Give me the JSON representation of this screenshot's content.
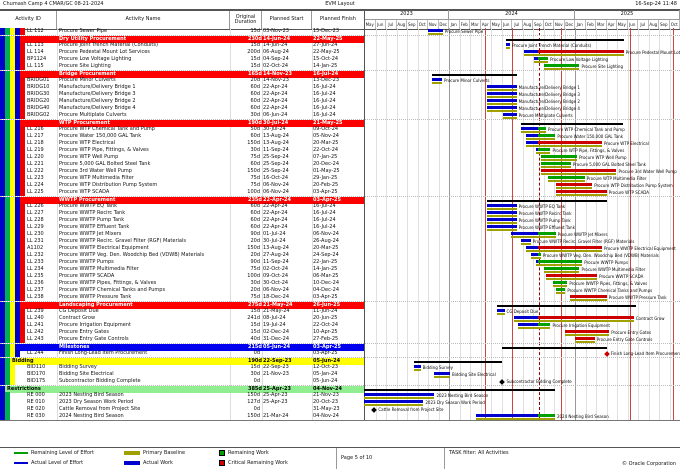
{
  "page": {
    "project": "Chumash Camp 4 CMAR/GC 08-21-2024",
    "layout": "EVM Layout",
    "datetime": "16-Sep-24 11:48",
    "page_label": "Page 5 of 10",
    "task_filter": "TASK filter: All Activities",
    "copyright": "© Oracle Corporation"
  },
  "columns": {
    "id": "Activity ID",
    "name": "Activity Name",
    "duration": "Original Duration",
    "start": "Planned Start",
    "finish": "Planned Finish"
  },
  "timeline": {
    "start_date": "01-May-23",
    "end_date": "01-Nov-25",
    "data_date": "16-Sep-24",
    "years": [
      {
        "label": "2023",
        "months": 8
      },
      {
        "label": "2024",
        "months": 12
      },
      {
        "label": "2025",
        "months": 10
      }
    ],
    "months": [
      "May",
      "Jun",
      "Jul",
      "Aug",
      "Sep",
      "Oct",
      "Nov",
      "Dec",
      "Jan",
      "Feb",
      "Mar",
      "Apr",
      "May",
      "Jun",
      "Jul",
      "Aug",
      "Sep",
      "Oct",
      "Nov",
      "Dec",
      "Jan",
      "Feb",
      "Mar",
      "Apr",
      "May",
      "Jun",
      "Jul",
      "Aug",
      "Sep",
      "Oct"
    ],
    "markers": [
      "15-Apr-24",
      "01-Jul-24",
      "21-Nov-24",
      "10-Jun-25",
      "12-Oct-25"
    ]
  },
  "colors": {
    "actual": "#0000cc",
    "remaining": "#00a000",
    "critical": "#cc0000",
    "baseline": "#a0a000",
    "summary": "#000000",
    "band_red": "#ff0000",
    "band_blue": "#0000ee",
    "band_yellow": "#ffff00",
    "band_green": "#90ee90",
    "stripes": [
      "#0000cc",
      "#00b050",
      "#ffff00",
      "#0000cc",
      "#ee0000"
    ],
    "marker": "#cc4444",
    "grid": "#e0e0e0",
    "grid_year": "#999999"
  },
  "legend": [
    {
      "swatch": "line",
      "color": "#00a000",
      "label": "Remaining Level of Effort"
    },
    {
      "swatch": "line",
      "color": "#0000cc",
      "label": "Actual Level of Effort"
    },
    {
      "swatch": "bar",
      "color": "#a0a000",
      "label": "Primary Baseline"
    },
    {
      "swatch": "bar",
      "color": "#0000cc",
      "label": "Actual Work"
    },
    {
      "swatch": "square",
      "color": "#00a000",
      "label": "Remaining Work"
    },
    {
      "swatch": "square",
      "color": "#cc0000",
      "label": "Critical Remaining Work"
    }
  ],
  "rows": [
    {
      "type": "task",
      "level": 5,
      "id": "LL 112",
      "name": "Procure Sewer Pipe",
      "dur": "15d",
      "start": "03-Nov-23",
      "finish": "15-Dec-23",
      "critical": false
    },
    {
      "type": "band",
      "band": "red",
      "level": 4,
      "name": "Dry Utility Procurement",
      "dur": "230d",
      "start": "14-Jun-24",
      "finish": "22-May-25"
    },
    {
      "type": "task",
      "level": 5,
      "id": "LL 113",
      "name": "Procure Joint Trench Material (Conduits)",
      "dur": "15d",
      "start": "14-Jun-24",
      "finish": "27-Jun-24",
      "critical": false
    },
    {
      "type": "task",
      "level": 5,
      "id": "LL 114",
      "name": "Procure Pedestal Mount Lot Services",
      "dur": "200d",
      "start": "06-Aug-24",
      "finish": "22-May-25",
      "critical": true
    },
    {
      "type": "task",
      "level": 5,
      "id": "BP1124",
      "name": "Procure Low Voltage Lighting",
      "dur": "15d",
      "start": "04-Sep-24",
      "finish": "15-Oct-24",
      "critical": false
    },
    {
      "type": "task",
      "level": 5,
      "id": "LL 115",
      "name": "Procure Site Lighting",
      "dur": "15d",
      "start": "02-Oct-24",
      "finish": "14-Jan-25",
      "critical": false
    },
    {
      "type": "band",
      "band": "red",
      "level": 4,
      "name": "Bridge Procurement",
      "dur": "165d",
      "start": "14-Nov-23",
      "finish": "16-Jul-24"
    },
    {
      "type": "task",
      "level": 5,
      "id": "BRIDG01",
      "name": "Procure Minor Culverts",
      "dur": "20d",
      "start": "14-Nov-23",
      "finish": "13-Dec-23",
      "critical": false
    },
    {
      "type": "task",
      "level": 5,
      "id": "BRIDG10",
      "name": "Manufacture/Delivery Bridge 1",
      "dur": "60d",
      "start": "22-Apr-24",
      "finish": "16-Jul-24",
      "critical": false
    },
    {
      "type": "task",
      "level": 5,
      "id": "BRIDG30",
      "name": "Manufacture/Delivery Bridge 3",
      "dur": "60d",
      "start": "22-Apr-24",
      "finish": "16-Jul-24",
      "critical": false
    },
    {
      "type": "task",
      "level": 5,
      "id": "BRIDG20",
      "name": "Manufacture/Delivery Bridge 2",
      "dur": "60d",
      "start": "22-Apr-24",
      "finish": "16-Jul-24",
      "critical": false
    },
    {
      "type": "task",
      "level": 5,
      "id": "BRIDG40",
      "name": "Manufacture/Delivery Bridge 4",
      "dur": "60d",
      "start": "22-Apr-24",
      "finish": "16-Jul-24",
      "critical": false
    },
    {
      "type": "task",
      "level": 5,
      "id": "BRIDG02",
      "name": "Procure Multiplate Culverts",
      "dur": "30d",
      "start": "06-Jun-24",
      "finish": "16-Jul-24",
      "critical": false
    },
    {
      "type": "band",
      "band": "red",
      "level": 4,
      "name": "WTP Procurement",
      "dur": "190d",
      "start": "30-Jul-24",
      "finish": "21-May-25"
    },
    {
      "type": "task",
      "level": 5,
      "id": "LL 216",
      "name": "Procure WTP Chemical Tank and Pump",
      "dur": "50d",
      "start": "30-Jul-24",
      "finish": "09-Oct-24",
      "critical": false
    },
    {
      "type": "task",
      "level": 5,
      "id": "LL 217",
      "name": "Procure Water 150,000 GAL Tank",
      "dur": "60d",
      "start": "13-Aug-24",
      "finish": "05-Nov-24",
      "critical": false
    },
    {
      "type": "task",
      "level": 5,
      "id": "LL 218",
      "name": "Procure WTP Electrical",
      "dur": "150d",
      "start": "13-Aug-24",
      "finish": "20-Mar-25",
      "critical": true
    },
    {
      "type": "task",
      "level": 5,
      "id": "LL 219",
      "name": "Procure WTP Pipe, Fittings, & Valves",
      "dur": "30d",
      "start": "11-Sep-24",
      "finish": "22-Oct-24",
      "critical": false
    },
    {
      "type": "task",
      "level": 5,
      "id": "LL 220",
      "name": "Procure WTP Well Pump",
      "dur": "75d",
      "start": "25-Sep-24",
      "finish": "07-Jan-25",
      "critical": false
    },
    {
      "type": "task",
      "level": 5,
      "id": "LL 221",
      "name": "Procure 5,000 GAL Bolted Steel Tank",
      "dur": "60d",
      "start": "25-Sep-24",
      "finish": "20-Dec-24",
      "critical": false
    },
    {
      "type": "task",
      "level": 5,
      "id": "LL 222",
      "name": "Procure 3rd Water Well Pump",
      "dur": "150d",
      "start": "25-Sep-24",
      "finish": "01-May-25",
      "critical": true
    },
    {
      "type": "task",
      "level": 5,
      "id": "LL 223",
      "name": "Procure WTP Multimedia Filter",
      "dur": "75d",
      "start": "16-Oct-24",
      "finish": "29-Jan-25",
      "critical": false
    },
    {
      "type": "task",
      "level": 5,
      "id": "LL 224",
      "name": "Procure WTP Distribution Pump System",
      "dur": "75d",
      "start": "06-Nov-24",
      "finish": "20-Feb-25",
      "critical": true
    },
    {
      "type": "task",
      "level": 5,
      "id": "LL 225",
      "name": "Procure WTP SCADA",
      "dur": "100d",
      "start": "06-Nov-24",
      "finish": "03-Apr-25",
      "critical": true
    },
    {
      "type": "band",
      "band": "red",
      "level": 4,
      "name": "WWTP Procurement",
      "dur": "235d",
      "start": "22-Apr-24",
      "finish": "03-Apr-25"
    },
    {
      "type": "task",
      "level": 5,
      "id": "LL 226",
      "name": "Procure WWTP EQ Tank",
      "dur": "60d",
      "start": "22-Apr-24",
      "finish": "16-Jul-24",
      "critical": false
    },
    {
      "type": "task",
      "level": 5,
      "id": "LL 227",
      "name": "Procure WWTP Recirc Tank",
      "dur": "60d",
      "start": "22-Apr-24",
      "finish": "16-Jul-24",
      "critical": false
    },
    {
      "type": "task",
      "level": 5,
      "id": "LL 228",
      "name": "Procure WWTP Pump Tank",
      "dur": "60d",
      "start": "22-Apr-24",
      "finish": "16-Jul-24",
      "critical": false
    },
    {
      "type": "task",
      "level": 5,
      "id": "LL 229",
      "name": "Procure WWTP Effluent Tank",
      "dur": "60d",
      "start": "22-Apr-24",
      "finish": "16-Jul-24",
      "critical": false
    },
    {
      "type": "task",
      "level": 5,
      "id": "LL 230",
      "name": "Procure WWTP Jet Mixers",
      "dur": "90d",
      "start": "01-Jul-24",
      "finish": "06-Nov-24",
      "critical": false
    },
    {
      "type": "task",
      "level": 5,
      "id": "LL 231",
      "name": "Procure WWTP Recirc. Gravel Filter (RGF) Materials",
      "dur": "20d",
      "start": "30-Jul-24",
      "finish": "26-Aug-24",
      "critical": false
    },
    {
      "type": "task",
      "level": 5,
      "id": "A1102",
      "name": "Procure WWTP Electrical Equipment",
      "dur": "150d",
      "start": "13-Aug-24",
      "finish": "20-Mar-25",
      "critical": true
    },
    {
      "type": "task",
      "level": 5,
      "id": "LL 232",
      "name": "Procure WWTP Veg. Den. Woodchip Bed (VDWB) Materials",
      "dur": "20d",
      "start": "27-Aug-24",
      "finish": "24-Sep-24",
      "critical": false
    },
    {
      "type": "task",
      "level": 5,
      "id": "LL 233",
      "name": "Procure WWTP Pumps",
      "dur": "90d",
      "start": "11-Sep-24",
      "finish": "22-Jan-25",
      "critical": false
    },
    {
      "type": "task",
      "level": 5,
      "id": "LL 234",
      "name": "Procure WWTP Multimedia Filter",
      "dur": "75d",
      "start": "02-Oct-24",
      "finish": "14-Jan-25",
      "critical": false
    },
    {
      "type": "task",
      "level": 5,
      "id": "LL 235",
      "name": "Procure WWTP SCADA",
      "dur": "100d",
      "start": "09-Oct-24",
      "finish": "06-Mar-25",
      "critical": true
    },
    {
      "type": "task",
      "level": 5,
      "id": "LL 236",
      "name": "Procure WWTP Pipes, Fittings, & Valves",
      "dur": "30d",
      "start": "30-Oct-24",
      "finish": "10-Dec-24",
      "critical": false
    },
    {
      "type": "task",
      "level": 5,
      "id": "LL 237",
      "name": "Procure WWTP Chemical Tanks and Pumps",
      "dur": "20d",
      "start": "06-Nov-24",
      "finish": "04-Dec-24",
      "critical": false
    },
    {
      "type": "task",
      "level": 5,
      "id": "LL 238",
      "name": "Procure WWTP Pressure Tank",
      "dur": "75d",
      "start": "18-Dec-24",
      "finish": "03-Apr-25",
      "critical": true
    },
    {
      "type": "band",
      "band": "red",
      "level": 4,
      "name": "Landscaping Procurement",
      "dur": "275d",
      "start": "21-May-24",
      "finish": "26-Jun-25"
    },
    {
      "type": "task",
      "level": 5,
      "id": "LL 239",
      "name": "CG Deposit Due",
      "dur": "15d",
      "start": "21-May-24",
      "finish": "11-Jun-24",
      "critical": false
    },
    {
      "type": "task",
      "level": 5,
      "id": "LL 240",
      "name": "Contract Grow",
      "dur": "241d",
      "start": "08-Jul-24",
      "finish": "20-Jun-25",
      "critical": true
    },
    {
      "type": "task",
      "level": 5,
      "id": "LL 241",
      "name": "Procure Irrigation Equipment",
      "dur": "15d",
      "start": "19-Jul-24",
      "finish": "22-Oct-24",
      "critical": false
    },
    {
      "type": "task",
      "level": 5,
      "id": "LL 242",
      "name": "Procure Entry Gates",
      "dur": "15d",
      "start": "02-Dec-24",
      "finish": "10-Apr-25",
      "critical": true
    },
    {
      "type": "task",
      "level": 5,
      "id": "LL 243",
      "name": "Procure Entry Gate Controls",
      "dur": "40d",
      "start": "31-Dec-24",
      "finish": "27-Feb-25",
      "critical": true
    },
    {
      "type": "band",
      "band": "blue",
      "level": 3,
      "name": "Milestones",
      "dur": "215d",
      "start": "05-Jun-24",
      "finish": "03-Apr-25"
    },
    {
      "type": "task",
      "level": 4,
      "id": "LL 244",
      "name": "Finish Long-Lead Item Procurement",
      "dur": "0d",
      "start": "",
      "finish": "03-Apr-25",
      "critical": true
    },
    {
      "type": "band",
      "band": "yellow",
      "level": 2,
      "name": "Bidding",
      "dur": "190d",
      "start": "22-Sep-23",
      "finish": "05-Jun-24"
    },
    {
      "type": "task",
      "level": 3,
      "id": "BID110",
      "name": "Bidding Survey",
      "dur": "15d",
      "start": "22-Sep-23",
      "finish": "12-Oct-23",
      "critical": false
    },
    {
      "type": "task",
      "level": 3,
      "id": "BID170",
      "name": "Bidding Site Electrical",
      "dur": "30d",
      "start": "21-Nov-23",
      "finish": "05-Jan-24",
      "critical": false
    },
    {
      "type": "task",
      "level": 3,
      "id": "BID175",
      "name": "Subcontractor Bidding Complete",
      "dur": "0d",
      "start": "",
      "finish": "05-Jun-24",
      "critical": false
    },
    {
      "type": "band",
      "band": "green",
      "level": 1,
      "name": "Restrictions",
      "dur": "385d",
      "start": "25-Apr-23",
      "finish": "04-Nov-24"
    },
    {
      "type": "task",
      "level": 2,
      "id": "RE 000",
      "name": "2023 Nesting Bird Season",
      "dur": "150d",
      "start": "25-Apr-23",
      "finish": "21-Nov-23",
      "critical": false
    },
    {
      "type": "task",
      "level": 2,
      "id": "RE 010",
      "name": "2023 Dry Season Work Period",
      "dur": "127d",
      "start": "25-Apr-23",
      "finish": "20-Oct-23",
      "critical": false
    },
    {
      "type": "task",
      "level": 2,
      "id": "RE 020",
      "name": "Cattle Removal from Project Site",
      "dur": "0d",
      "start": "",
      "finish": "31-May-23",
      "critical": false
    },
    {
      "type": "task",
      "level": 2,
      "id": "RE 030",
      "name": "2024 Nesting Bird Season",
      "dur": "150d",
      "start": "21-Mar-24",
      "finish": "04-Nov-24",
      "critical": false
    }
  ]
}
